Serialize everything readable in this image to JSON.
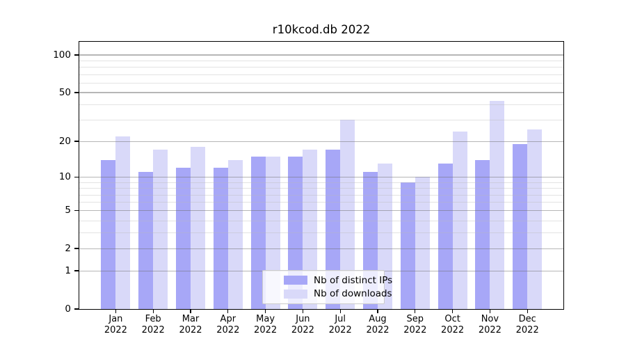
{
  "chart_data": {
    "type": "bar",
    "title": "r10kcod.db 2022",
    "categories": [
      "Jan",
      "Feb",
      "Mar",
      "Apr",
      "May",
      "Jun",
      "Jul",
      "Aug",
      "Sep",
      "Oct",
      "Nov",
      "Dec"
    ],
    "x_year_label": "2022",
    "series": [
      {
        "name": "Nb of distinct IPs",
        "color": "#a7a7f7",
        "values": [
          14,
          11,
          12,
          12,
          15,
          15,
          17,
          11,
          9,
          13,
          14,
          19
        ]
      },
      {
        "name": "Nb of downloads",
        "color": "#d9d9f9",
        "values": [
          22,
          17,
          18,
          14,
          15,
          17,
          30,
          13,
          10,
          24,
          43,
          25
        ]
      }
    ],
    "y_axis": {
      "scale": "log1p",
      "tick_values": [
        0,
        1,
        2,
        5,
        10,
        20,
        50,
        100
      ],
      "minor_gridlines": [
        3,
        4,
        6,
        7,
        8,
        9,
        30,
        40,
        60,
        70,
        80,
        90
      ],
      "ylim": [
        0,
        127
      ]
    },
    "xlabel": "",
    "ylabel": "",
    "grid": true,
    "legend_position": "lower-center",
    "colors": {
      "frame": "#000000",
      "background": "#ffffff"
    }
  }
}
